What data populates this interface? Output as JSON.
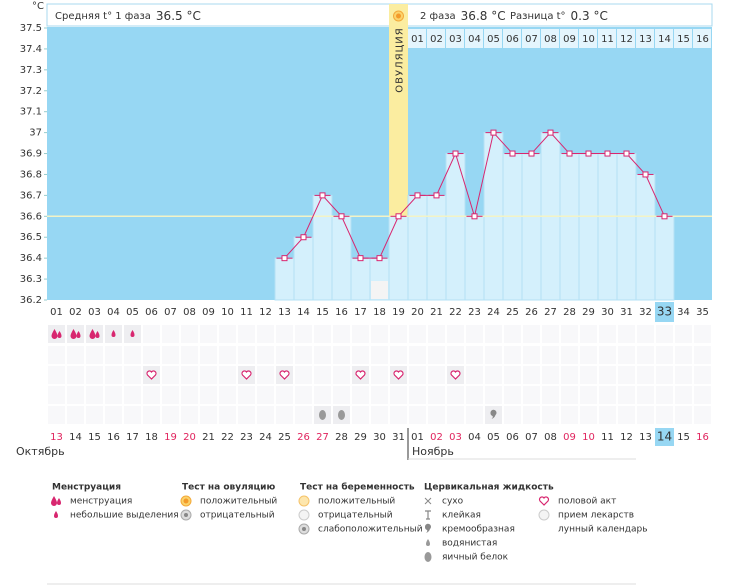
{
  "axis_unit": "°C",
  "header": {
    "phase1_label": "Средняя t° 1 фаза",
    "phase1_value": "36.5 °C",
    "phase2_label": "2 фаза",
    "phase2_value": "36.8 °C",
    "diff_label": "Разница t°",
    "diff_value": "0.3 °C"
  },
  "chart_data": {
    "type": "line",
    "categories": [
      "01",
      "02",
      "03",
      "04",
      "05",
      "06",
      "07",
      "08",
      "09",
      "10",
      "11",
      "12",
      "13",
      "14",
      "15",
      "16",
      "17",
      "18",
      "19",
      "20",
      "21",
      "22",
      "23",
      "24",
      "25",
      "26",
      "27",
      "28",
      "29",
      "30",
      "31",
      "32",
      "33",
      "34",
      "35"
    ],
    "values": [
      null,
      null,
      null,
      null,
      null,
      null,
      null,
      null,
      null,
      null,
      null,
      null,
      36.4,
      36.5,
      36.7,
      36.6,
      36.4,
      36.4,
      36.6,
      36.7,
      36.7,
      36.9,
      36.6,
      37.0,
      36.9,
      36.9,
      37.0,
      36.9,
      36.9,
      36.9,
      36.9,
      36.8,
      36.6,
      null,
      null
    ],
    "ylim": [
      36.2,
      37.5
    ],
    "yticks": [
      36.2,
      36.3,
      36.4,
      36.5,
      36.6,
      36.7,
      36.8,
      36.9,
      37,
      37.1,
      37.2,
      37.3,
      37.4,
      37.5
    ],
    "grid": false,
    "coverline": 36.6,
    "background_color": "#97d7f3",
    "bar_color": "#d4f0fc",
    "line_color": "#d8266f",
    "coverline_color": "#f3f3c6",
    "ovulation_color": "#fbeda0",
    "ovulation_day": "19",
    "ovulation_label": "ОВУЛЯЦИЯ",
    "today_day": "33",
    "lunar_day": "18",
    "phase2_days": [
      "01",
      "02",
      "03",
      "04",
      "05",
      "06",
      "07",
      "08",
      "09",
      "10",
      "11",
      "12",
      "13",
      "14",
      "15",
      "16"
    ]
  },
  "dates": [
    {
      "d": "13",
      "w": true
    },
    {
      "d": "14",
      "w": false
    },
    {
      "d": "15",
      "w": false
    },
    {
      "d": "16",
      "w": false
    },
    {
      "d": "17",
      "w": false
    },
    {
      "d": "18",
      "w": false
    },
    {
      "d": "19",
      "w": true
    },
    {
      "d": "20",
      "w": true
    },
    {
      "d": "21",
      "w": false
    },
    {
      "d": "22",
      "w": false
    },
    {
      "d": "23",
      "w": false
    },
    {
      "d": "24",
      "w": false
    },
    {
      "d": "25",
      "w": false
    },
    {
      "d": "26",
      "w": true
    },
    {
      "d": "27",
      "w": true
    },
    {
      "d": "28",
      "w": false
    },
    {
      "d": "29",
      "w": false
    },
    {
      "d": "30",
      "w": false
    },
    {
      "d": "31",
      "w": false
    },
    {
      "d": "01",
      "w": false
    },
    {
      "d": "02",
      "w": true
    },
    {
      "d": "03",
      "w": true
    },
    {
      "d": "04",
      "w": false
    },
    {
      "d": "05",
      "w": false
    },
    {
      "d": "06",
      "w": false
    },
    {
      "d": "07",
      "w": false
    },
    {
      "d": "08",
      "w": false
    },
    {
      "d": "09",
      "w": true
    },
    {
      "d": "10",
      "w": true
    },
    {
      "d": "11",
      "w": false
    },
    {
      "d": "12",
      "w": false
    },
    {
      "d": "13",
      "w": false
    },
    {
      "d": "14",
      "w": false
    },
    {
      "d": "15",
      "w": false
    },
    {
      "d": "16",
      "w": true
    }
  ],
  "months": [
    "Октябрь",
    "Ноябрь"
  ],
  "symbol_rows": [
    {
      "marks": {
        "01": "heavy",
        "02": "heavy",
        "03": "heavy",
        "04": "light",
        "05": "light"
      }
    },
    {
      "marks": {}
    },
    {
      "marks": {
        "06": "heart",
        "11": "heart",
        "13": "heart",
        "17": "heart",
        "19": "heart",
        "22": "heart"
      }
    },
    {
      "marks": {}
    },
    {
      "marks": {
        "15": "eggwhite",
        "16": "eggwhite",
        "24": "creamy"
      }
    }
  ],
  "legend": [
    {
      "title": "Менструация",
      "items": [
        {
          "icon": "heavy",
          "label": "менструация"
        },
        {
          "icon": "light",
          "label": "небольшие выделения"
        }
      ]
    },
    {
      "title": "Тест на овуляцию",
      "items": [
        {
          "icon": "sun",
          "label": "положительный"
        },
        {
          "icon": "graycircle",
          "label": "отрицательный"
        }
      ]
    },
    {
      "title": "Тест на беременность",
      "items": [
        {
          "icon": "sunlight",
          "label": "положительный"
        },
        {
          "icon": "whitecircle",
          "label": "отрицательный"
        },
        {
          "icon": "graycircle",
          "label": "слабоположительный"
        }
      ]
    },
    {
      "title": "Цервикальная жидкость",
      "items": [
        {
          "icon": "cross",
          "label": "сухо"
        },
        {
          "icon": "tee",
          "label": "клейкая"
        },
        {
          "icon": "creamy",
          "label": "кремообразная"
        },
        {
          "icon": "light",
          "gray": true,
          "label": "водянистая"
        },
        {
          "icon": "eggwhite",
          "label": "яичный белок"
        }
      ]
    },
    {
      "items": [
        {
          "icon": "heart",
          "label": "половой акт"
        },
        {
          "icon": "whitecircle",
          "label": "прием лекарств"
        },
        {
          "icon": "moon",
          "label": "лунный календарь"
        }
      ]
    }
  ]
}
